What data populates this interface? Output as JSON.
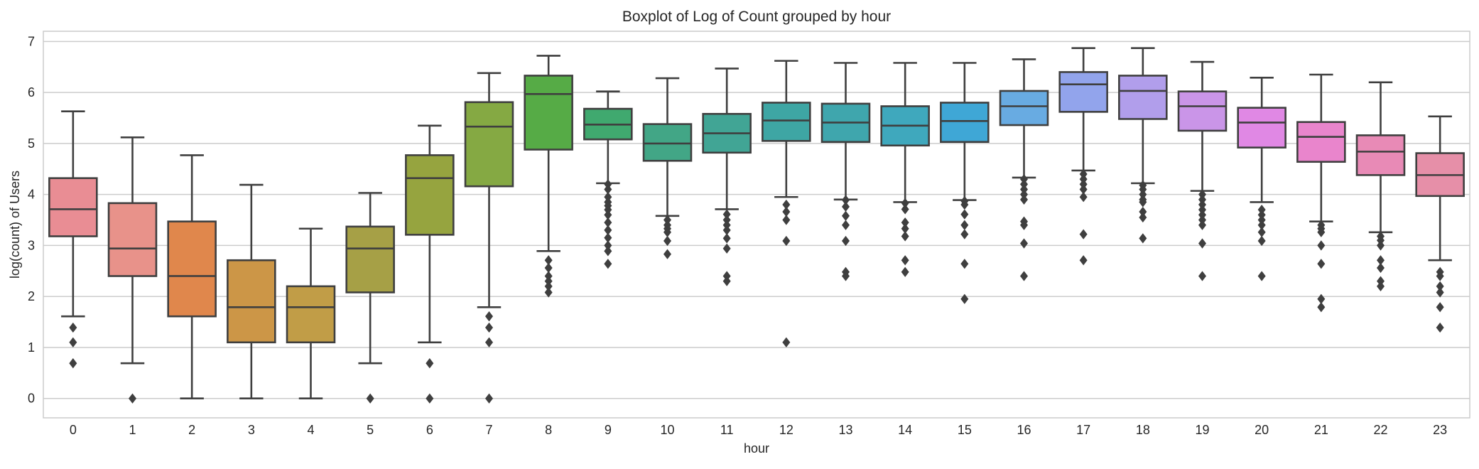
{
  "chart_data": {
    "type": "boxplot",
    "title": "Boxplot of Log of Count grouped by hour",
    "xlabel": "hour",
    "ylabel": "log(count) of Users",
    "ylim": [
      -0.38,
      7.2
    ],
    "yticks": [
      0,
      1,
      2,
      3,
      4,
      5,
      6,
      7
    ],
    "grid": "horizontal",
    "categories": [
      "0",
      "1",
      "2",
      "3",
      "4",
      "5",
      "6",
      "7",
      "8",
      "9",
      "10",
      "11",
      "12",
      "13",
      "14",
      "15",
      "16",
      "17",
      "18",
      "19",
      "20",
      "21",
      "22",
      "23"
    ],
    "boxes": [
      {
        "hour": "0",
        "color": "#e98d94",
        "whislo": 1.61,
        "q1": 3.18,
        "med": 3.71,
        "q3": 4.32,
        "whishi": 5.63,
        "fliers": [
          1.39,
          1.1,
          0.69
        ]
      },
      {
        "hour": "1",
        "color": "#e8928a",
        "whislo": 0.69,
        "q1": 2.4,
        "med": 2.94,
        "q3": 3.83,
        "whishi": 5.12,
        "fliers": [
          0
        ]
      },
      {
        "hour": "2",
        "color": "#e0874c",
        "whislo": 0,
        "q1": 1.61,
        "med": 2.4,
        "q3": 3.47,
        "whishi": 4.77,
        "fliers": []
      },
      {
        "hour": "3",
        "color": "#cc9647",
        "whislo": 0,
        "q1": 1.1,
        "med": 1.79,
        "q3": 2.71,
        "whishi": 4.19,
        "fliers": []
      },
      {
        "hour": "4",
        "color": "#c19d47",
        "whislo": 0,
        "q1": 1.1,
        "med": 1.79,
        "q3": 2.2,
        "whishi": 3.33,
        "fliers": []
      },
      {
        "hour": "5",
        "color": "#a6a046",
        "whislo": 0.69,
        "q1": 2.08,
        "med": 2.94,
        "q3": 3.37,
        "whishi": 4.03,
        "fliers": [
          0
        ]
      },
      {
        "hour": "6",
        "color": "#96a43f",
        "whislo": 1.1,
        "q1": 3.21,
        "med": 4.32,
        "q3": 4.77,
        "whishi": 5.35,
        "fliers": [
          0.69,
          0
        ]
      },
      {
        "hour": "7",
        "color": "#85a943",
        "whislo": 1.79,
        "q1": 4.16,
        "med": 5.33,
        "q3": 5.81,
        "whishi": 6.38,
        "fliers": [
          1.61,
          1.39,
          1.1,
          0
        ]
      },
      {
        "hour": "8",
        "color": "#56ab46",
        "whislo": 2.89,
        "q1": 4.88,
        "med": 5.97,
        "q3": 6.33,
        "whishi": 6.72,
        "fliers": [
          2.71,
          2.56,
          2.4,
          2.3,
          2.2,
          2.08
        ]
      },
      {
        "hour": "9",
        "color": "#40a96f",
        "whislo": 4.22,
        "q1": 5.08,
        "med": 5.37,
        "q3": 5.68,
        "whishi": 6.02,
        "fliers": [
          4.2,
          4.1,
          3.95,
          3.85,
          3.78,
          3.7,
          3.6,
          3.45,
          3.3,
          3.15,
          3.0,
          2.89,
          2.64
        ]
      },
      {
        "hour": "10",
        "color": "#42a686",
        "whislo": 3.58,
        "q1": 4.66,
        "med": 5.0,
        "q3": 5.38,
        "whishi": 6.28,
        "fliers": [
          3.5,
          3.4,
          3.33,
          3.26,
          3.09,
          2.83
        ]
      },
      {
        "hour": "11",
        "color": "#41a595",
        "whislo": 3.71,
        "q1": 4.82,
        "med": 5.2,
        "q3": 5.58,
        "whishi": 6.47,
        "fliers": [
          3.61,
          3.5,
          3.4,
          3.3,
          3.14,
          2.94,
          2.4,
          2.3
        ]
      },
      {
        "hour": "12",
        "color": "#3ea6a4",
        "whislo": 3.95,
        "q1": 5.05,
        "med": 5.45,
        "q3": 5.8,
        "whishi": 6.62,
        "fliers": [
          3.8,
          3.66,
          3.5,
          3.09,
          1.1
        ]
      },
      {
        "hour": "13",
        "color": "#3fa6ad",
        "whislo": 3.9,
        "q1": 5.03,
        "med": 5.41,
        "q3": 5.78,
        "whishi": 6.58,
        "fliers": [
          3.89,
          3.76,
          3.58,
          3.4,
          3.09,
          2.48,
          2.4
        ]
      },
      {
        "hour": "14",
        "color": "#3fa8bd",
        "whislo": 3.85,
        "q1": 4.96,
        "med": 5.35,
        "q3": 5.73,
        "whishi": 6.58,
        "fliers": [
          3.83,
          3.71,
          3.45,
          3.33,
          3.18,
          2.71,
          2.48
        ]
      },
      {
        "hour": "15",
        "color": "#3fa7d6",
        "whislo": 3.89,
        "q1": 5.03,
        "med": 5.44,
        "q3": 5.8,
        "whishi": 6.58,
        "fliers": [
          3.87,
          3.8,
          3.61,
          3.4,
          3.22,
          2.64,
          1.95
        ]
      },
      {
        "hour": "16",
        "color": "#68abe2",
        "whislo": 4.33,
        "q1": 5.36,
        "med": 5.73,
        "q3": 6.03,
        "whishi": 6.65,
        "fliers": [
          4.3,
          4.2,
          4.1,
          4.0,
          3.9,
          3.47,
          3.4,
          3.04,
          2.4
        ]
      },
      {
        "hour": "17",
        "color": "#92a4ec",
        "whislo": 4.47,
        "q1": 5.62,
        "med": 6.16,
        "q3": 6.4,
        "whishi": 6.87,
        "fliers": [
          4.4,
          4.3,
          4.2,
          4.1,
          3.95,
          3.22,
          2.71
        ]
      },
      {
        "hour": "18",
        "color": "#b19eeb",
        "whislo": 4.22,
        "q1": 5.48,
        "med": 6.03,
        "q3": 6.33,
        "whishi": 6.87,
        "fliers": [
          4.18,
          4.1,
          4.0,
          3.9,
          3.85,
          3.66,
          3.55,
          3.14
        ]
      },
      {
        "hour": "19",
        "color": "#ca95e8",
        "whislo": 4.07,
        "q1": 5.25,
        "med": 5.73,
        "q3": 6.02,
        "whishi": 6.6,
        "fliers": [
          4.0,
          3.9,
          3.8,
          3.7,
          3.6,
          3.5,
          3.4,
          3.04,
          2.4
        ]
      },
      {
        "hour": "20",
        "color": "#e088e4",
        "whislo": 3.85,
        "q1": 4.92,
        "med": 5.41,
        "q3": 5.7,
        "whishi": 6.29,
        "fliers": [
          3.7,
          3.6,
          3.5,
          3.4,
          3.26,
          3.09,
          2.4
        ]
      },
      {
        "hour": "21",
        "color": "#e985cc",
        "whislo": 3.47,
        "q1": 4.64,
        "med": 5.13,
        "q3": 5.42,
        "whishi": 6.35,
        "fliers": [
          3.4,
          3.33,
          3.26,
          3.0,
          2.64,
          1.95,
          1.79
        ]
      },
      {
        "hour": "22",
        "color": "#e88ab6",
        "whislo": 3.26,
        "q1": 4.38,
        "med": 4.84,
        "q3": 5.16,
        "whishi": 6.2,
        "fliers": [
          3.18,
          3.1,
          3.0,
          2.71,
          2.56,
          2.3,
          2.2
        ]
      },
      {
        "hour": "23",
        "color": "#e68fa8",
        "whislo": 2.71,
        "q1": 3.97,
        "med": 4.38,
        "q3": 4.81,
        "whishi": 5.53,
        "fliers": [
          2.48,
          2.4,
          2.2,
          2.08,
          1.79,
          1.39
        ]
      }
    ]
  }
}
